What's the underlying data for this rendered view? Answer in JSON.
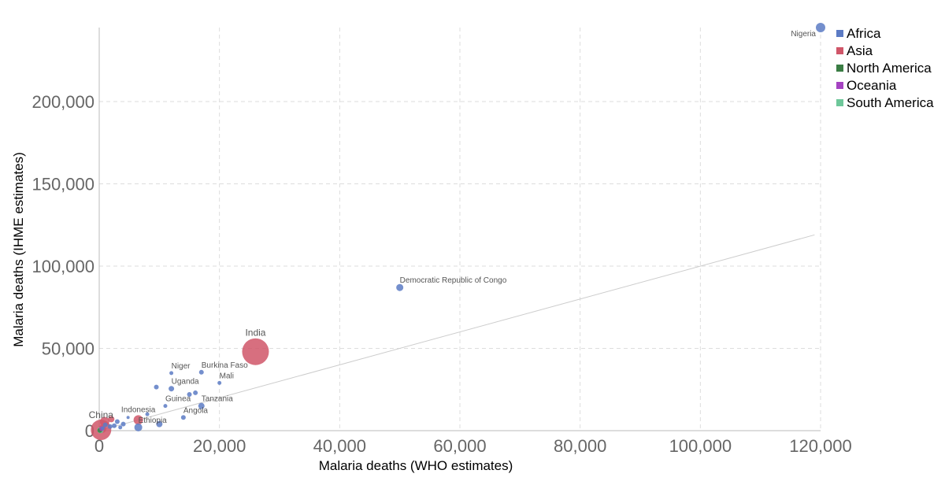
{
  "chart_data": {
    "type": "scatter",
    "xlabel": "Malaria deaths (WHO estimates)",
    "ylabel": "Malaria deaths (IHME estimates)",
    "xlim": [
      0,
      120000
    ],
    "ylim": [
      0,
      245000
    ],
    "x_ticks": [
      0,
      20000,
      40000,
      60000,
      80000,
      100000,
      120000
    ],
    "x_tick_labels": [
      "0",
      "20,000",
      "40,000",
      "60,000",
      "80,000",
      "100,000",
      "120,000"
    ],
    "y_ticks": [
      0,
      50000,
      100000,
      150000,
      200000
    ],
    "y_tick_labels": [
      "0",
      "50,000",
      "100,000",
      "150,000",
      "200,000"
    ],
    "grid": true,
    "legend_position": "top-right",
    "reference_line": {
      "from": [
        0,
        0
      ],
      "to": [
        119000,
        119000
      ],
      "color": "#cccccc"
    },
    "legend": [
      {
        "name": "Africa",
        "color": "#5c7bc4"
      },
      {
        "name": "Asia",
        "color": "#d05669"
      },
      {
        "name": "North America",
        "color": "#3a7d44"
      },
      {
        "name": "Oceania",
        "color": "#a543c2"
      },
      {
        "name": "South America",
        "color": "#6ec79a"
      }
    ],
    "points": [
      {
        "label": "Nigeria",
        "region": "Africa",
        "x": 120000,
        "y": 245000,
        "r": 6
      },
      {
        "label": "Democratic Republic of Congo",
        "region": "Africa",
        "x": 50000,
        "y": 87000,
        "r": 4.5
      },
      {
        "label": "India",
        "region": "Asia",
        "x": 26000,
        "y": 48000,
        "r": 17
      },
      {
        "label": "Niger",
        "region": "Africa",
        "x": 12000,
        "y": 35000,
        "r": 2.5
      },
      {
        "label": "Burkina Faso",
        "region": "Africa",
        "x": 17000,
        "y": 35500,
        "r": 3
      },
      {
        "label": "Mali",
        "region": "Africa",
        "x": 20000,
        "y": 29000,
        "r": 2.5
      },
      {
        "label": "Uganda",
        "region": "Africa",
        "x": 12000,
        "y": 25500,
        "r": 3.5
      },
      {
        "label": "Guinea",
        "region": "Africa",
        "x": 11000,
        "y": 15000,
        "r": 2.5
      },
      {
        "label": "Tanzania",
        "region": "Africa",
        "x": 17000,
        "y": 15000,
        "r": 4
      },
      {
        "label": "Angola",
        "region": "Africa",
        "x": 14000,
        "y": 8000,
        "r": 3
      },
      {
        "label": "Indonesia",
        "region": "Asia",
        "x": 6500,
        "y": 6500,
        "r": 6
      },
      {
        "label": "Ethiopia",
        "region": "Africa",
        "x": 6500,
        "y": 2000,
        "r": 5
      },
      {
        "label": "China",
        "region": "Asia",
        "x": 300,
        "y": 500,
        "r": 13
      },
      {
        "label": "",
        "region": "Asia",
        "x": 900,
        "y": 5500,
        "r": 6
      },
      {
        "label": "",
        "region": "Asia",
        "x": 2000,
        "y": 7000,
        "r": 4
      },
      {
        "label": "",
        "region": "Africa",
        "x": 9500,
        "y": 26500,
        "r": 3
      },
      {
        "label": "",
        "region": "Africa",
        "x": 15000,
        "y": 22000,
        "r": 3
      },
      {
        "label": "",
        "region": "Africa",
        "x": 16000,
        "y": 23000,
        "r": 3
      },
      {
        "label": "",
        "region": "Africa",
        "x": 10000,
        "y": 4000,
        "r": 4
      },
      {
        "label": "",
        "region": "Africa",
        "x": 8000,
        "y": 10000,
        "r": 2.5
      },
      {
        "label": "",
        "region": "Africa",
        "x": 4800,
        "y": 8000,
        "r": 2
      },
      {
        "label": "",
        "region": "Africa",
        "x": 4000,
        "y": 4000,
        "r": 3
      },
      {
        "label": "",
        "region": "Africa",
        "x": 3000,
        "y": 5500,
        "r": 3
      },
      {
        "label": "",
        "region": "Africa",
        "x": 3500,
        "y": 2000,
        "r": 2.5
      },
      {
        "label": "",
        "region": "Africa",
        "x": 2500,
        "y": 3000,
        "r": 3
      },
      {
        "label": "",
        "region": "Africa",
        "x": 1800,
        "y": 2500,
        "r": 3
      },
      {
        "label": "",
        "region": "Africa",
        "x": 1000,
        "y": 3500,
        "r": 3
      },
      {
        "label": "",
        "region": "Africa",
        "x": 600,
        "y": 1500,
        "r": 2.5
      },
      {
        "label": "",
        "region": "Asia",
        "x": 500,
        "y": 1000,
        "r": 5
      },
      {
        "label": "",
        "region": "South America",
        "x": 200,
        "y": 300,
        "r": 4
      },
      {
        "label": "",
        "region": "North America",
        "x": 100,
        "y": 200,
        "r": 3
      },
      {
        "label": "",
        "region": "Oceania",
        "x": 400,
        "y": 1200,
        "r": 3
      }
    ]
  }
}
